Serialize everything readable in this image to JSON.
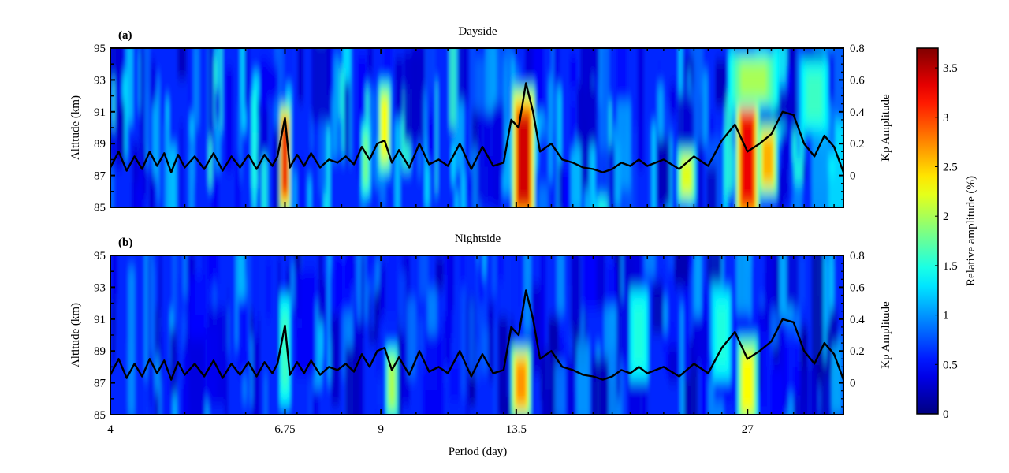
{
  "chart_data": [
    {
      "type": "heatmap",
      "panel_label": "(a)",
      "title": "Dayside",
      "xlabel": "",
      "ylabel": "Altitude (km)",
      "y2label": "Kp Amplitude",
      "x_scale": "log",
      "xlim": [
        4,
        36
      ],
      "ylim": [
        85,
        95
      ],
      "y2lim": [
        -0.2,
        0.8
      ],
      "x_ticks": [
        "4",
        "6.75",
        "9",
        "13.5",
        "27"
      ],
      "y_ticks": [
        "85",
        "87",
        "89",
        "91",
        "93",
        "95"
      ],
      "y2_ticks": [
        "0",
        "0.2",
        "0.4",
        "0.6",
        "0.8"
      ],
      "heat_peaks": [
        {
          "period": 6.75,
          "altitude": 88,
          "amplitude": 3.3,
          "width_day": 0.08,
          "height_km": 6
        },
        {
          "period": 9.1,
          "altitude": 90,
          "amplitude": 2.3,
          "width_day": 0.12,
          "height_km": 5
        },
        {
          "period": 8.6,
          "altitude": 88,
          "amplitude": 1.8,
          "width_day": 0.08,
          "height_km": 4
        },
        {
          "period": 13.8,
          "altitude": 88,
          "amplitude": 3.4,
          "width_day": 0.35,
          "height_km": 8
        },
        {
          "period": 22.5,
          "altitude": 87,
          "amplitude": 2.2,
          "width_day": 0.45,
          "height_km": 3
        },
        {
          "period": 27,
          "altitude": 88,
          "amplitude": 3.3,
          "width_day": 0.7,
          "height_km": 8
        },
        {
          "period": 28.7,
          "altitude": 88,
          "amplitude": 2.6,
          "width_day": 0.6,
          "height_km": 4
        },
        {
          "period": 27.5,
          "altitude": 93,
          "amplitude": 2.0,
          "width_day": 1.5,
          "height_km": 3
        },
        {
          "period": 33,
          "altitude": 92,
          "amplitude": 1.6,
          "width_day": 1.0,
          "height_km": 4
        }
      ]
    },
    {
      "type": "heatmap",
      "panel_label": "(b)",
      "title": "Nightside",
      "xlabel": "Period (day)",
      "ylabel": "Altitude (km)",
      "y2label": "Kp Amplitude",
      "x_scale": "log",
      "xlim": [
        4,
        36
      ],
      "ylim": [
        85,
        95
      ],
      "y2lim": [
        -0.2,
        0.8
      ],
      "x_ticks": [
        "4",
        "6.75",
        "9",
        "13.5",
        "27"
      ],
      "y_ticks": [
        "85",
        "87",
        "89",
        "91",
        "93",
        "95"
      ],
      "y2_ticks": [
        "0",
        "0.2",
        "0.4",
        "0.6",
        "0.8"
      ],
      "heat_peaks": [
        {
          "period": 6.75,
          "altitude": 89,
          "amplitude": 1.6,
          "width_day": 0.08,
          "height_km": 6
        },
        {
          "period": 9.3,
          "altitude": 87,
          "amplitude": 2.0,
          "width_day": 0.12,
          "height_km": 4
        },
        {
          "period": 13.7,
          "altitude": 87,
          "amplitude": 2.7,
          "width_day": 0.3,
          "height_km": 4
        },
        {
          "period": 19.5,
          "altitude": 90,
          "amplitude": 1.5,
          "width_day": 0.4,
          "height_km": 5
        },
        {
          "period": 25,
          "altitude": 90,
          "amplitude": 1.5,
          "width_day": 0.5,
          "height_km": 5
        },
        {
          "period": 27,
          "altitude": 87,
          "amplitude": 2.3,
          "width_day": 0.6,
          "height_km": 5
        }
      ]
    }
  ],
  "kp_line": {
    "name": "Kp Amplitude",
    "period": [
      4.0,
      4.1,
      4.2,
      4.3,
      4.4,
      4.5,
      4.6,
      4.7,
      4.8,
      4.9,
      5.0,
      5.15,
      5.3,
      5.45,
      5.6,
      5.75,
      5.9,
      6.05,
      6.2,
      6.35,
      6.5,
      6.6,
      6.75,
      6.85,
      7.0,
      7.15,
      7.3,
      7.5,
      7.7,
      7.9,
      8.1,
      8.3,
      8.5,
      8.7,
      8.9,
      9.1,
      9.3,
      9.5,
      9.8,
      10.1,
      10.4,
      10.7,
      11.0,
      11.4,
      11.8,
      12.2,
      12.6,
      13.0,
      13.3,
      13.6,
      13.9,
      14.2,
      14.5,
      15.0,
      15.5,
      16.0,
      16.5,
      17.0,
      17.5,
      18.0,
      18.5,
      19.0,
      19.5,
      20.0,
      21.0,
      22.0,
      23.0,
      24.0,
      25.0,
      26.0,
      27.0,
      28.0,
      29.0,
      30.0,
      31.0,
      32.0,
      33.0,
      34.0,
      35.0,
      36.0
    ],
    "value": [
      0.05,
      0.15,
      0.03,
      0.12,
      0.04,
      0.15,
      0.06,
      0.14,
      0.02,
      0.13,
      0.05,
      0.12,
      0.04,
      0.14,
      0.03,
      0.12,
      0.05,
      0.13,
      0.04,
      0.13,
      0.06,
      0.12,
      0.36,
      0.05,
      0.13,
      0.06,
      0.14,
      0.05,
      0.1,
      0.08,
      0.12,
      0.07,
      0.18,
      0.1,
      0.2,
      0.22,
      0.08,
      0.16,
      0.05,
      0.2,
      0.07,
      0.1,
      0.06,
      0.2,
      0.04,
      0.18,
      0.06,
      0.08,
      0.35,
      0.3,
      0.58,
      0.4,
      0.15,
      0.2,
      0.1,
      0.08,
      0.05,
      0.04,
      0.02,
      0.04,
      0.08,
      0.06,
      0.1,
      0.06,
      0.1,
      0.04,
      0.12,
      0.06,
      0.22,
      0.32,
      0.15,
      0.2,
      0.26,
      0.4,
      0.38,
      0.2,
      0.12,
      0.25,
      0.18,
      0.02
    ]
  },
  "colorbar": {
    "label": "Relative amplitude (%)",
    "range": [
      0,
      3.7
    ],
    "ticks": [
      "0",
      "0.5",
      "1",
      "1.5",
      "2",
      "2.5",
      "3",
      "3.5"
    ],
    "colormap": "jet"
  }
}
